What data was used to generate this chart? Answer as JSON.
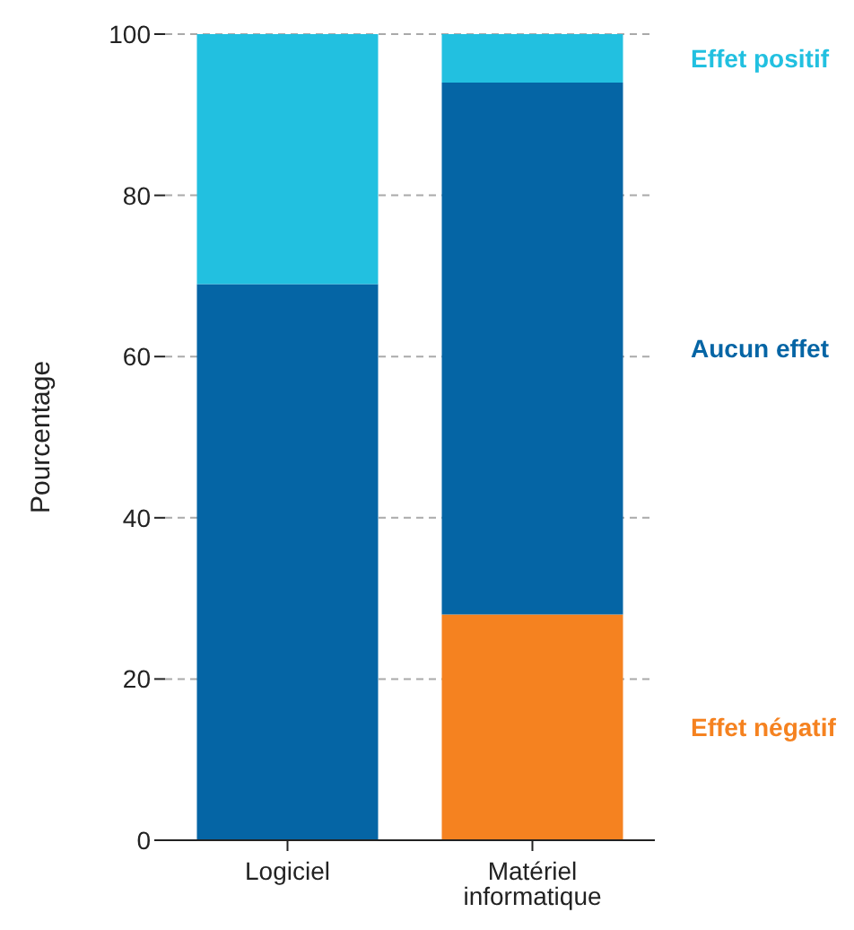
{
  "chart_data": {
    "type": "bar",
    "stacked": true,
    "ylabel": "Pourcentage",
    "categories": [
      "Logiciel",
      "Matériel informatique"
    ],
    "series": [
      {
        "name": "Effet négatif",
        "color": "#f58220",
        "values": [
          0,
          28
        ]
      },
      {
        "name": "Aucun effet",
        "color": "#0565a5",
        "values": [
          69,
          66
        ]
      },
      {
        "name": "Effet positif",
        "color": "#22c0e0",
        "values": [
          31,
          6
        ]
      }
    ],
    "ylim": [
      0,
      100
    ],
    "yticks": [
      0,
      20,
      40,
      60,
      80,
      100
    ],
    "grid": "y",
    "legend": false
  }
}
